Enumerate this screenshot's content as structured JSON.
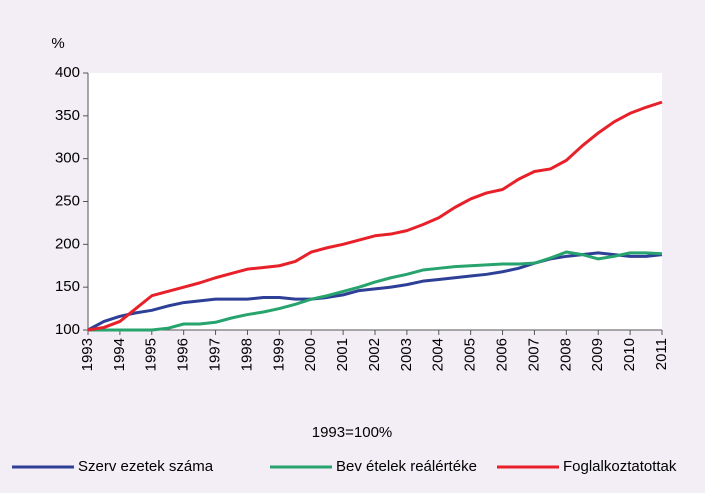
{
  "chart_data": {
    "type": "line",
    "y_label": "%",
    "annotation": "1993=100%",
    "x": [
      1993,
      1993.5,
      1994,
      1994.5,
      1995,
      1995.5,
      1996,
      1996.5,
      1997,
      1997.5,
      1998,
      1998.5,
      1999,
      1999.5,
      2000,
      2000.5,
      2001,
      2001.5,
      2002,
      2002.5,
      2003,
      2003.5,
      2004,
      2004.5,
      2005,
      2005.5,
      2006,
      2006.5,
      2007,
      2007.5,
      2008,
      2008.5,
      2009,
      2009.5,
      2010,
      2010.5,
      2011
    ],
    "xlim": [
      1993,
      2011
    ],
    "xticks": [
      1993,
      1994,
      1995,
      1996,
      1997,
      1998,
      1999,
      2000,
      2001,
      2002,
      2003,
      2004,
      2005,
      2006,
      2007,
      2008,
      2009,
      2010,
      2011
    ],
    "ylim": [
      100,
      400
    ],
    "yticks": [
      100,
      150,
      200,
      250,
      300,
      350,
      400
    ],
    "grid": false,
    "legend": "bottom",
    "series": [
      {
        "name": "Szerv ezetek száma",
        "color": "#2e3f97",
        "values": [
          100,
          110,
          116,
          120,
          123,
          128,
          132,
          134,
          136,
          136,
          136,
          138,
          138,
          136,
          136,
          138,
          141,
          146,
          148,
          150,
          153,
          157,
          159,
          161,
          163,
          165,
          168,
          172,
          178,
          183,
          186,
          188,
          190,
          188,
          186,
          186,
          188
        ]
      },
      {
        "name": "Bev ételek reálértéke",
        "color": "#27a36e",
        "values": [
          100,
          100,
          100,
          100,
          100,
          102,
          107,
          107,
          109,
          114,
          118,
          121,
          125,
          130,
          136,
          140,
          145,
          150,
          156,
          161,
          165,
          170,
          172,
          174,
          175,
          176,
          177,
          177,
          178,
          184,
          191,
          188,
          183,
          186,
          190,
          190,
          189
        ]
      },
      {
        "name": "Foglalkoztatottak",
        "color": "#e8202a",
        "values": [
          100,
          103,
          110,
          125,
          140,
          145,
          150,
          155,
          161,
          166,
          171,
          173,
          175,
          180,
          191,
          196,
          200,
          205,
          210,
          212,
          216,
          223,
          231,
          243,
          253,
          260,
          264,
          276,
          285,
          288,
          298,
          315,
          330,
          343,
          353,
          360,
          366
        ]
      }
    ]
  }
}
